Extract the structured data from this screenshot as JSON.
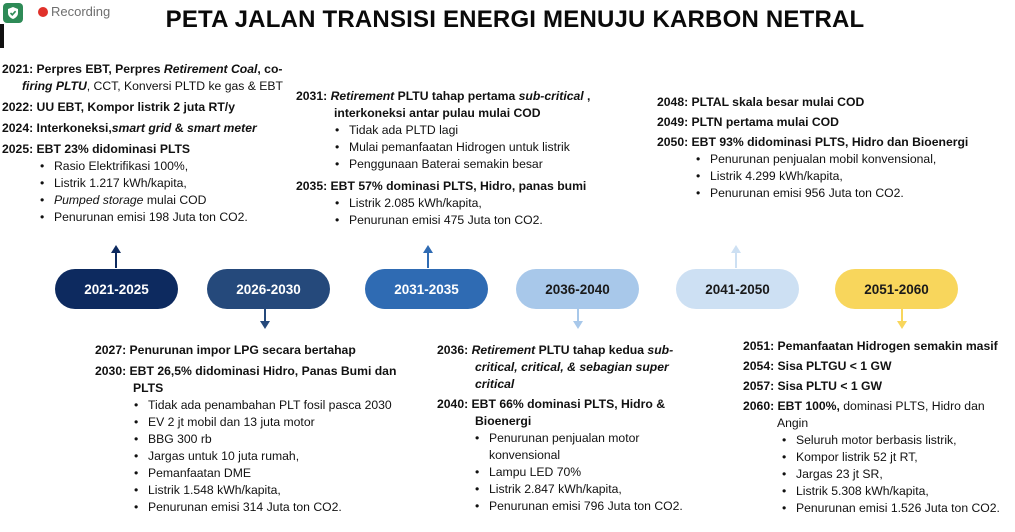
{
  "recording": {
    "label": "Recording"
  },
  "title": "PETA JALAN TRANSISI ENERGI MENUJU KARBON NETRAL",
  "colors": {
    "p1": "#0d2a5f",
    "p2": "#25497b",
    "p3": "#2f6bb3",
    "p4": "#a8c8ea",
    "p5": "#cde0f3",
    "p6": "#f8d65c"
  },
  "periods": [
    {
      "label": "2021-2025"
    },
    {
      "label": "2026-2030"
    },
    {
      "label": "2031-2035"
    },
    {
      "label": "2036-2040"
    },
    {
      "label": "2041-2050"
    },
    {
      "label": "2051-2060"
    }
  ],
  "p1": {
    "l1a": "2021: Perpres EBT, Perpres ",
    "l1b": "Retirement Coal",
    "l1c": ", co-",
    "l2a": "firing PLTU",
    "l2b": ", CCT, Konversi PLTD ke gas & EBT",
    "l3": "2022: UU EBT,  Kompor listrik 2 juta RT/y",
    "l4a": "2024: Interkoneksi,",
    "l4b": "smart grid",
    "l4c": " & ",
    "l4d": "smart meter",
    "l5": "2025: EBT 23% didominasi PLTS",
    "b1": "Rasio Elektrifikasi 100%,",
    "b2": "Listrik 1.217 kWh/kapita,",
    "b3a": "Pumped storage",
    "b3b": " mulai COD",
    "b4": "Penurunan emisi 198 Juta ton CO2."
  },
  "p2": {
    "l1": "2027: Penurunan impor LPG secara bertahap",
    "l2": "2030: EBT 26,5% didominasi Hidro, Panas Bumi dan",
    "l3": "PLTS",
    "b1": "Tidak ada penambahan PLT fosil pasca 2030",
    "b2": "EV 2 jt mobil dan 13 juta motor",
    "b3": "BBG 300 rb",
    "b4": "Jargas untuk 10 juta rumah,",
    "b5": "Pemanfaatan DME",
    "b6": "Listrik 1.548 kWh/kapita,",
    "b7": "Penurunan emisi 314 Juta ton CO2."
  },
  "p3": {
    "l1a": "2031: ",
    "l1b": "Retirement",
    "l1c": " PLTU tahap pertama ",
    "l1d": "sub-critical",
    "l1e": " ,",
    "l2": "interkoneksi antar pulau mulai COD",
    "b1": "Tidak ada PLTD lagi",
    "b2": "Mulai pemanfaatan Hidrogen untuk listrik",
    "b3": "Penggunaan Baterai semakin besar",
    "l3": "2035: EBT 57% dominasi PLTS, Hidro, panas bumi",
    "b4": "Listrik 2.085 kWh/kapita,",
    "b5": "Penurunan emisi 475 Juta ton CO2."
  },
  "p4": {
    "l1a": "2036: ",
    "l1b": "Retirement",
    "l1c": " PLTU tahap kedua ",
    "l1d": "sub-",
    "l2": "critical, critical, & sebagian super",
    "l3": "critical",
    "l4": "2040: EBT 66% dominasi PLTS, Hidro &",
    "l5": "Bioenergi",
    "b1": "Penurunan penjualan motor",
    "b1b": "konvensional",
    "b2": "Lampu  LED 70%",
    "b3": "Listrik 2.847 kWh/kapita,",
    "b4": "Penurunan emisi 796 Juta ton CO2."
  },
  "p5": {
    "l1": "2048: PLTAL skala besar mulai COD",
    "l2": "2049: PLTN pertama mulai COD",
    "l3": "2050: EBT 93% didominasi PLTS, Hidro dan Bioenergi",
    "b1": "Penurunan penjualan mobil konvensional,",
    "b2": "Listrik 4.299 kWh/kapita,",
    "b3": "Penurunan emisi 956 Juta ton CO2."
  },
  "p6": {
    "l1": "2051: Pemanfaatan Hidrogen semakin masif",
    "l2": "2054: Sisa PLTGU < 1 GW",
    "l3": "2057: Sisa PLTU < 1 GW",
    "l4a": "2060: EBT 100%,",
    "l4b": " dominasi PLTS, Hidro dan",
    "l5": "Angin",
    "b1": "Seluruh motor berbasis listrik,",
    "b2": "Kompor listrik 52 jt RT,",
    "b3": "Jargas 23 jt SR,",
    "b4": "Listrik 5.308 kWh/kapita,",
    "b5": "Penurunan emisi 1.526 Juta ton CO2."
  }
}
